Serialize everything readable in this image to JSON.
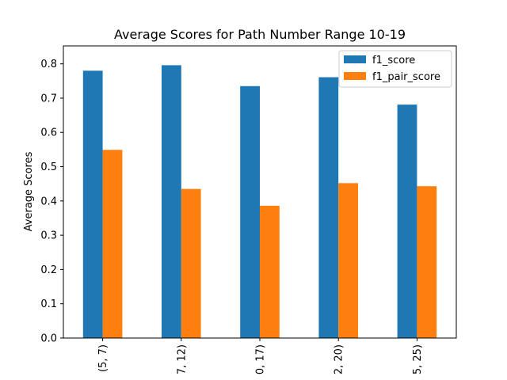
{
  "chart_data": {
    "type": "bar",
    "title": "Average Scores for Path Number Range 10-19",
    "xlabel": "",
    "ylabel": "Average Scores",
    "categories": [
      "(5, 7)",
      "7, 12)",
      "0, 17)",
      "2, 20)",
      "5, 25)"
    ],
    "series": [
      {
        "name": "f1_score",
        "color": "#1f77b4",
        "values": [
          0.78,
          0.796,
          0.735,
          0.761,
          0.681
        ]
      },
      {
        "name": "f1_pair_score",
        "color": "#ff7f0e",
        "values": [
          0.549,
          0.435,
          0.386,
          0.452,
          0.443
        ]
      }
    ],
    "ylim": [
      0,
      0.8
    ],
    "yticks": [
      "0.0",
      "0.1",
      "0.2",
      "0.3",
      "0.4",
      "0.5",
      "0.6",
      "0.7",
      "0.8"
    ],
    "grid": false,
    "legend": "top-right"
  }
}
